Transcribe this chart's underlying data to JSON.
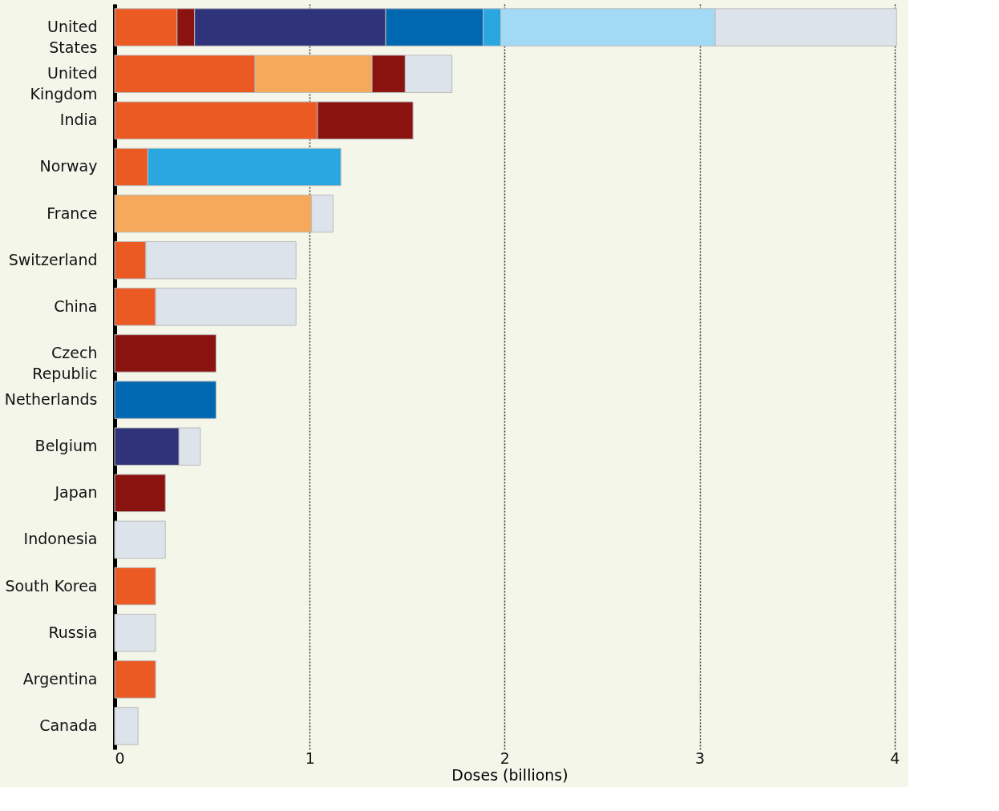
{
  "chart_data": {
    "type": "bar",
    "orientation": "horizontal",
    "stacked": true,
    "xlabel": "Doses (billions)",
    "grid": "x",
    "categories": [
      "United\nStates",
      "United\nKingdom",
      "India",
      "Norway",
      "France",
      "Switzerland",
      "China",
      "Czech\nRepublic",
      "Netherlands",
      "Belgium",
      "Japan",
      "Indonesia",
      "South Korea",
      "Russia",
      "Argentina",
      "Canada"
    ],
    "series": [
      {
        "color": "#ec5a24",
        "values": [
          0.32,
          0.72,
          1.04,
          0.17,
          null,
          0.16,
          0.21,
          null,
          null,
          null,
          null,
          null,
          0.21,
          null,
          0.21,
          null
        ]
      },
      {
        "color": "#f6a95a",
        "values": [
          null,
          0.6,
          null,
          null,
          1.01,
          null,
          null,
          null,
          null,
          null,
          null,
          null,
          null,
          null,
          null,
          null
        ]
      },
      {
        "color": "#8b130f",
        "values": [
          0.09,
          0.17,
          0.49,
          null,
          null,
          null,
          null,
          0.52,
          null,
          null,
          0.26,
          null,
          null,
          null,
          null,
          null
        ]
      },
      {
        "color": "#2f3379",
        "values": [
          0.98,
          null,
          null,
          null,
          null,
          null,
          null,
          null,
          null,
          0.33,
          null,
          null,
          null,
          null,
          null,
          null
        ]
      },
      {
        "color": "#0068b0",
        "values": [
          0.5,
          null,
          null,
          null,
          null,
          null,
          null,
          null,
          0.52,
          null,
          null,
          null,
          null,
          null,
          null,
          null
        ]
      },
      {
        "color": "#2aa7e1",
        "values": [
          0.09,
          null,
          null,
          0.99,
          null,
          null,
          null,
          null,
          null,
          null,
          null,
          null,
          null,
          null,
          null,
          null
        ]
      },
      {
        "color": "#a2d9f5",
        "values": [
          1.1,
          null,
          null,
          null,
          null,
          null,
          null,
          null,
          null,
          null,
          null,
          null,
          null,
          null,
          null,
          null
        ]
      },
      {
        "color": "#dde3ea",
        "values": [
          0.93,
          0.24,
          null,
          null,
          0.11,
          0.77,
          0.72,
          null,
          null,
          0.11,
          null,
          0.26,
          null,
          0.21,
          null,
          0.12
        ]
      }
    ],
    "xlim": [
      0,
      4.05
    ],
    "xticks": [
      0,
      1,
      2,
      3,
      4
    ]
  }
}
